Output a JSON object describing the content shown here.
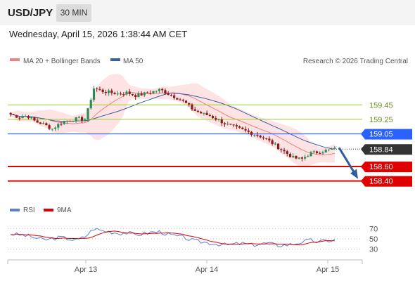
{
  "header": {
    "pair": "USD/JPY",
    "timeframe": "30 MIN"
  },
  "datetime": "Wednesday, April 15, 2026 1:38:44 AM CET",
  "legend": {
    "bb": "MA 20 + Bollinger Bands",
    "ma50": "MA 50",
    "credit": "Research © 2026 Trading Central"
  },
  "rsi_legend": {
    "rsi": "RSI",
    "ma9": "9MA"
  },
  "colors": {
    "up": "#2e8b57",
    "down": "#8b1a1a",
    "bb_fill": "#fddcdc",
    "ma20": "#f08080",
    "ma50": "#3a5fa0",
    "resistance": "#9acd32",
    "pivot": "#2962ff",
    "support": "#e00000",
    "current": "#333333",
    "arrow": "#2f5e9e",
    "rsi": "#5a7fd4"
  },
  "chart_data": [
    {
      "type": "candlestick",
      "title": "USD/JPY 30 MIN",
      "x_ticks": [
        "Apr 13",
        "Apr 14",
        "Apr 15"
      ],
      "ylim": [
        158.3,
        159.85
      ],
      "price_levels": [
        {
          "label": "159.45",
          "value": 159.45,
          "kind": "resistance"
        },
        {
          "label": "159.25",
          "value": 159.25,
          "kind": "resistance"
        },
        {
          "label": "159.05",
          "value": 159.05,
          "kind": "pivot"
        },
        {
          "label": "158.84",
          "value": 158.84,
          "kind": "current"
        },
        {
          "label": "158.60",
          "value": 158.6,
          "kind": "support"
        },
        {
          "label": "158.40",
          "value": 158.4,
          "kind": "support"
        }
      ],
      "close_path": [
        159.32,
        159.28,
        159.3,
        159.22,
        159.18,
        159.12,
        159.2,
        159.24,
        159.26,
        159.25,
        159.68,
        159.64,
        159.62,
        159.6,
        159.62,
        159.58,
        159.6,
        159.63,
        159.66,
        159.6,
        159.55,
        159.48,
        159.38,
        159.33,
        159.3,
        159.24,
        159.18,
        159.14,
        159.1,
        159.06,
        159.02,
        158.96,
        158.88,
        158.8,
        158.72,
        158.7,
        158.78,
        158.8,
        158.82,
        158.84
      ]
    },
    {
      "type": "line",
      "title": "RSI",
      "y_ticks": [
        70,
        50,
        30
      ],
      "ylim": [
        20,
        80
      ],
      "rsi_path": [
        60,
        58,
        56,
        52,
        48,
        50,
        53,
        50,
        47,
        55,
        70,
        66,
        64,
        61,
        62,
        58,
        60,
        63,
        64,
        58,
        55,
        52,
        46,
        44,
        42,
        40,
        38,
        40,
        41,
        38,
        40,
        42,
        37,
        38,
        40,
        44,
        47,
        44,
        46,
        48
      ]
    }
  ]
}
